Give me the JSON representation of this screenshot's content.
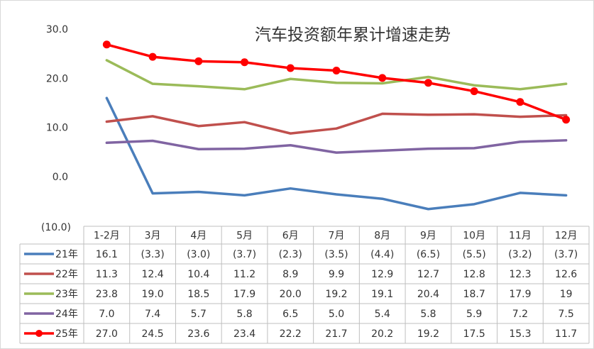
{
  "chart_data": {
    "type": "line",
    "title": "汽车投资额年累计增速走势",
    "categories": [
      "1-2月",
      "3月",
      "4月",
      "5月",
      "6月",
      "7月",
      "8月",
      "9月",
      "10月",
      "11月",
      "12月"
    ],
    "ylim": [
      -10,
      30
    ],
    "yticks": [
      {
        "value": 30,
        "label": "30.0"
      },
      {
        "value": 20,
        "label": "20.0"
      },
      {
        "value": 10,
        "label": "10.0"
      },
      {
        "value": 0,
        "label": "0.0"
      },
      {
        "value": -10,
        "label": "(10.0)"
      }
    ],
    "grid": false,
    "data_table": true,
    "series": [
      {
        "name": "21年",
        "color": "#4a7ebb",
        "markers": false,
        "values": [
          16.1,
          -3.3,
          -3.0,
          -3.7,
          -2.3,
          -3.5,
          -4.4,
          -6.5,
          -5.5,
          -3.2,
          -3.7
        ],
        "value_labels": [
          "16.1",
          "(3.3)",
          "(3.0)",
          "(3.7)",
          "(2.3)",
          "(3.5)",
          "(4.4)",
          "(6.5)",
          "(5.5)",
          "(3.2)",
          "(3.7)"
        ]
      },
      {
        "name": "22年",
        "color": "#c0504d",
        "markers": false,
        "values": [
          11.3,
          12.4,
          10.4,
          11.2,
          8.9,
          9.9,
          12.9,
          12.7,
          12.8,
          12.3,
          12.6
        ],
        "value_labels": [
          "11.3",
          "12.4",
          "10.4",
          "11.2",
          "8.9",
          "9.9",
          "12.9",
          "12.7",
          "12.8",
          "12.3",
          "12.6"
        ]
      },
      {
        "name": "23年",
        "color": "#9bbb59",
        "markers": false,
        "values": [
          23.8,
          19.0,
          18.5,
          17.9,
          20.0,
          19.2,
          19.1,
          20.4,
          18.7,
          17.9,
          19
        ],
        "value_labels": [
          "23.8",
          "19.0",
          "18.5",
          "17.9",
          "20.0",
          "19.2",
          "19.1",
          "20.4",
          "18.7",
          "17.9",
          "19"
        ]
      },
      {
        "name": "24年",
        "color": "#8064a2",
        "markers": false,
        "values": [
          7.0,
          7.4,
          5.7,
          5.8,
          6.5,
          5.0,
          5.4,
          5.8,
          5.9,
          7.2,
          7.5
        ],
        "value_labels": [
          "7.0",
          "7.4",
          "5.7",
          "5.8",
          "6.5",
          "5.0",
          "5.4",
          "5.8",
          "5.9",
          "7.2",
          "7.5"
        ]
      },
      {
        "name": "25年",
        "color": "#ff0000",
        "markers": true,
        "values": [
          27.0,
          24.5,
          23.6,
          23.4,
          22.2,
          21.7,
          20.2,
          19.2,
          17.5,
          15.3,
          11.7
        ],
        "value_labels": [
          "27.0",
          "24.5",
          "23.6",
          "23.4",
          "22.2",
          "21.7",
          "20.2",
          "19.2",
          "17.5",
          "15.3",
          "11.7"
        ]
      }
    ]
  }
}
